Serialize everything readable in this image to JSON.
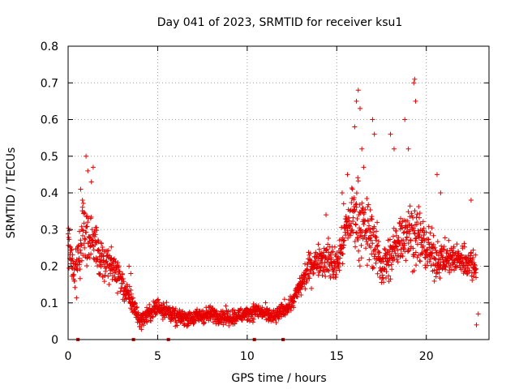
{
  "chart_data": {
    "type": "scatter",
    "title": "Day 041 of 2023, SRMTID for receiver ksu1",
    "xlabel": "GPS time / hours",
    "ylabel": "SRMTID / TECUs",
    "xlim": [
      0,
      23.5
    ],
    "ylim": [
      0,
      0.8
    ],
    "xticks": [
      0,
      5,
      10,
      15,
      20
    ],
    "yticks": [
      0,
      0.1,
      0.2,
      0.3,
      0.4,
      0.5,
      0.6,
      0.7,
      0.8
    ],
    "xtick_labels": [
      "0",
      "5",
      "10",
      "15",
      "20"
    ],
    "ytick_labels": [
      "0",
      "0.1",
      "0.2",
      "0.3",
      "0.4",
      "0.5",
      "0.6",
      "0.7",
      "0.8"
    ],
    "grid": true,
    "marker": "+",
    "color": "#e60000",
    "series": [
      {
        "name": "SRMTID",
        "profile": [
          [
            0.0,
            0.28,
            0.05
          ],
          [
            0.3,
            0.18,
            0.05
          ],
          [
            0.6,
            0.22,
            0.07
          ],
          [
            0.9,
            0.3,
            0.1
          ],
          [
            1.2,
            0.28,
            0.08
          ],
          [
            1.6,
            0.25,
            0.06
          ],
          [
            2.0,
            0.2,
            0.05
          ],
          [
            2.4,
            0.2,
            0.05
          ],
          [
            2.8,
            0.18,
            0.05
          ],
          [
            3.2,
            0.13,
            0.03
          ],
          [
            3.6,
            0.1,
            0.03
          ],
          [
            4.0,
            0.05,
            0.02
          ],
          [
            4.5,
            0.07,
            0.02
          ],
          [
            5.0,
            0.09,
            0.03
          ],
          [
            5.5,
            0.08,
            0.02
          ],
          [
            6.0,
            0.06,
            0.02
          ],
          [
            7.0,
            0.06,
            0.02
          ],
          [
            8.0,
            0.07,
            0.02
          ],
          [
            9.0,
            0.06,
            0.02
          ],
          [
            10.0,
            0.07,
            0.02
          ],
          [
            10.5,
            0.08,
            0.02
          ],
          [
            11.0,
            0.07,
            0.02
          ],
          [
            11.5,
            0.06,
            0.02
          ],
          [
            12.0,
            0.08,
            0.02
          ],
          [
            12.5,
            0.1,
            0.02
          ],
          [
            13.0,
            0.15,
            0.03
          ],
          [
            13.5,
            0.2,
            0.04
          ],
          [
            14.0,
            0.22,
            0.04
          ],
          [
            14.5,
            0.22,
            0.05
          ],
          [
            15.0,
            0.2,
            0.05
          ],
          [
            15.5,
            0.3,
            0.07
          ],
          [
            16.0,
            0.35,
            0.1
          ],
          [
            16.5,
            0.3,
            0.09
          ],
          [
            17.0,
            0.28,
            0.08
          ],
          [
            17.5,
            0.2,
            0.06
          ],
          [
            18.0,
            0.22,
            0.06
          ],
          [
            18.5,
            0.28,
            0.07
          ],
          [
            19.0,
            0.3,
            0.08
          ],
          [
            19.5,
            0.28,
            0.08
          ],
          [
            20.0,
            0.25,
            0.07
          ],
          [
            20.5,
            0.22,
            0.05
          ],
          [
            21.0,
            0.22,
            0.04
          ],
          [
            21.5,
            0.22,
            0.04
          ],
          [
            22.0,
            0.22,
            0.04
          ],
          [
            22.8,
            0.2,
            0.05
          ]
        ],
        "x": [
          1.0,
          1.1,
          1.3,
          1.4,
          0.7,
          0.8,
          16.0,
          16.1,
          16.2,
          16.3,
          16.4,
          16.5,
          17.0,
          17.1,
          18.0,
          18.2,
          19.3,
          19.35,
          19.4,
          18.8,
          19.0,
          20.6,
          20.8,
          22.5,
          22.8,
          22.9,
          3.4,
          3.5,
          14.4,
          15.3,
          15.6
        ],
        "y": [
          0.5,
          0.46,
          0.43,
          0.47,
          0.41,
          0.38,
          0.58,
          0.65,
          0.68,
          0.63,
          0.52,
          0.47,
          0.6,
          0.56,
          0.56,
          0.52,
          0.7,
          0.71,
          0.65,
          0.6,
          0.52,
          0.45,
          0.4,
          0.38,
          0.04,
          0.07,
          0.2,
          0.18,
          0.34,
          0.4,
          0.45
        ],
        "zero_markers_x": [
          0.55,
          3.65,
          5.6,
          10.4,
          12.0
        ]
      }
    ]
  }
}
